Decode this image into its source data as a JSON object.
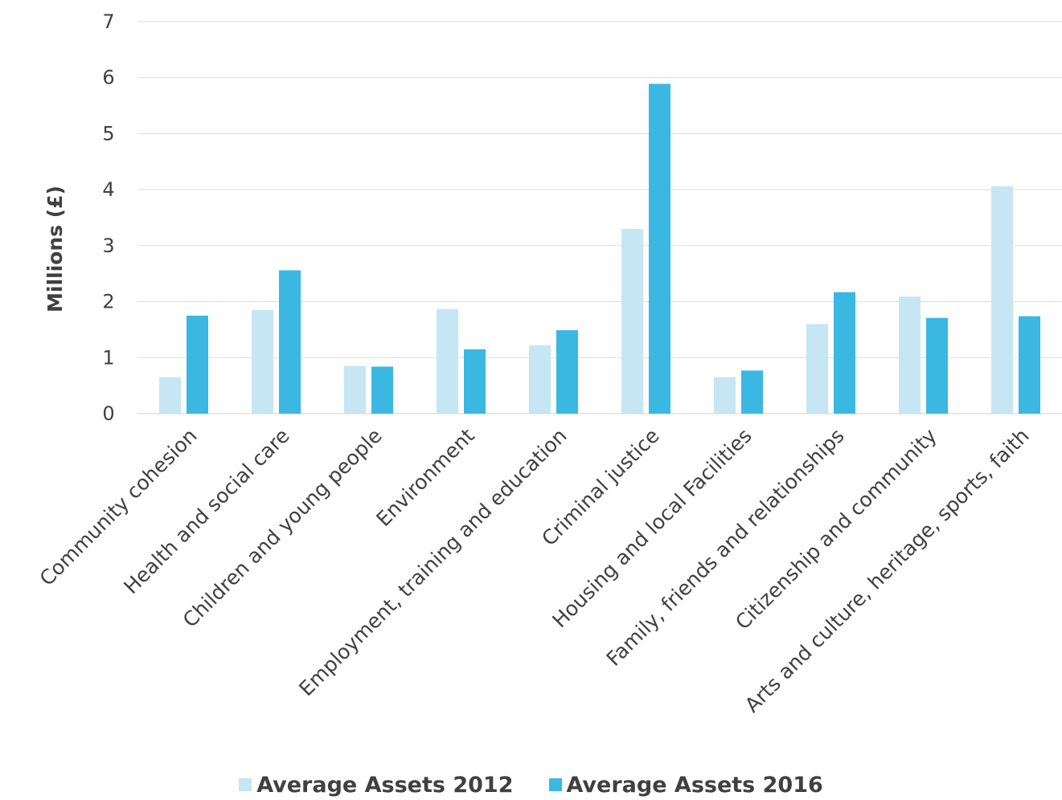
{
  "chart_data": {
    "type": "bar",
    "ylabel": "Millions (£)",
    "xlabel": "",
    "ylim": [
      0,
      7
    ],
    "yticks": [
      "0",
      "1",
      "2",
      "3",
      "4",
      "5",
      "6",
      "7"
    ],
    "grid": true,
    "legend_position": "bottom",
    "categories": [
      "Community cohesion",
      "Health and social care",
      "Children and young people",
      "Environment",
      "Employment, training and education",
      "Criminal justice",
      "Housing and local Facilities",
      "Family, friends and relationships",
      "Citizenship and community",
      "Arts and culture, heritage, sports, faith"
    ],
    "series": [
      {
        "name": "Average Assets 2012",
        "color": "#c5e6f2",
        "values": [
          0.65,
          1.85,
          0.85,
          1.87,
          1.22,
          3.3,
          0.65,
          1.6,
          2.09,
          4.06
        ]
      },
      {
        "name": "Average Assets 2016",
        "color": "#3ab8e2",
        "values": [
          1.75,
          2.56,
          0.84,
          1.15,
          1.49,
          5.89,
          0.77,
          2.17,
          1.71,
          1.74
        ]
      }
    ]
  }
}
